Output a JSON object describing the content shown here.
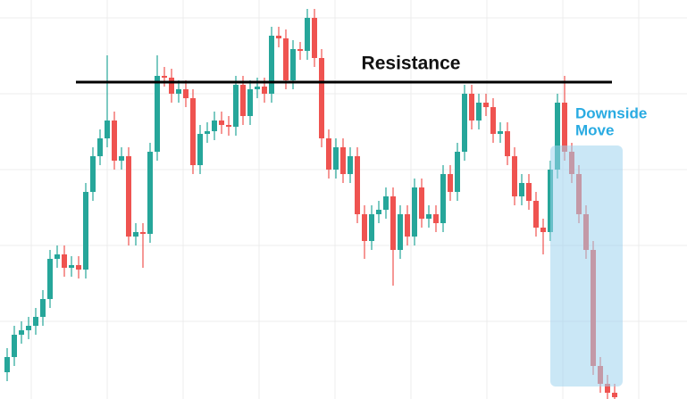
{
  "chart_data": {
    "type": "candlestick",
    "up_color": "#26a69a",
    "down_color": "#ef5350",
    "ylim": [
      0,
      447
    ],
    "open": [
      30,
      47,
      72,
      77,
      82,
      92,
      112,
      157,
      162,
      147,
      150,
      145,
      232,
      272,
      292,
      312,
      267,
      272,
      182,
      187,
      185,
      277,
      362,
      360,
      342,
      347,
      337,
      262,
      297,
      300,
      312,
      307,
      305,
      352,
      317,
      347,
      350,
      342,
      407,
      404,
      357,
      392,
      390,
      427,
      382,
      292,
      257,
      282,
      252,
      272,
      207,
      177,
      207,
      212,
      227,
      167,
      207,
      182,
      237,
      202,
      207,
      197,
      252,
      232,
      277,
      342,
      312,
      332,
      327,
      297,
      300,
      272,
      227,
      242,
      222,
      192,
      187,
      257,
      332,
      277,
      252,
      207,
      167,
      37,
      17,
      7
    ],
    "high": [
      57,
      82,
      87,
      92,
      102,
      122,
      167,
      172,
      172,
      160,
      160,
      242,
      282,
      302,
      385,
      322,
      282,
      282,
      197,
      197,
      287,
      385,
      372,
      370,
      357,
      357,
      347,
      307,
      310,
      322,
      322,
      317,
      362,
      362,
      357,
      360,
      360,
      417,
      417,
      414,
      402,
      400,
      437,
      437,
      392,
      302,
      292,
      292,
      282,
      282,
      217,
      217,
      222,
      237,
      237,
      217,
      217,
      247,
      247,
      217,
      217,
      262,
      262,
      287,
      352,
      352,
      342,
      342,
      337,
      310,
      310,
      282,
      252,
      252,
      232,
      202,
      267,
      342,
      362,
      287,
      262,
      217,
      177,
      47,
      27,
      17
    ],
    "low": [
      20,
      37,
      62,
      67,
      72,
      82,
      102,
      147,
      137,
      137,
      135,
      135,
      222,
      262,
      282,
      257,
      257,
      172,
      172,
      147,
      175,
      267,
      350,
      332,
      332,
      327,
      252,
      252,
      287,
      290,
      297,
      295,
      295,
      307,
      307,
      337,
      332,
      332,
      394,
      347,
      347,
      380,
      380,
      372,
      282,
      247,
      247,
      242,
      242,
      197,
      157,
      167,
      197,
      202,
      127,
      157,
      172,
      172,
      192,
      192,
      187,
      187,
      222,
      222,
      267,
      302,
      302,
      317,
      287,
      287,
      262,
      217,
      217,
      212,
      182,
      162,
      177,
      247,
      267,
      242,
      197,
      157,
      27,
      7,
      0,
      0
    ],
    "close": [
      47,
      72,
      77,
      82,
      92,
      112,
      157,
      162,
      147,
      150,
      145,
      232,
      272,
      292,
      312,
      267,
      272,
      182,
      187,
      185,
      277,
      362,
      360,
      342,
      347,
      337,
      262,
      297,
      300,
      312,
      307,
      305,
      352,
      317,
      347,
      350,
      342,
      407,
      404,
      357,
      392,
      390,
      427,
      382,
      292,
      257,
      282,
      252,
      272,
      207,
      177,
      207,
      212,
      227,
      167,
      207,
      182,
      237,
      202,
      207,
      197,
      252,
      232,
      277,
      342,
      312,
      332,
      327,
      297,
      300,
      272,
      227,
      242,
      222,
      192,
      187,
      257,
      332,
      277,
      252,
      207,
      167,
      37,
      17,
      7,
      2
    ],
    "resistance": 355,
    "annotations": {
      "resistance_label": "Resistance",
      "move_label": [
        "Downside",
        "Move"
      ]
    }
  }
}
